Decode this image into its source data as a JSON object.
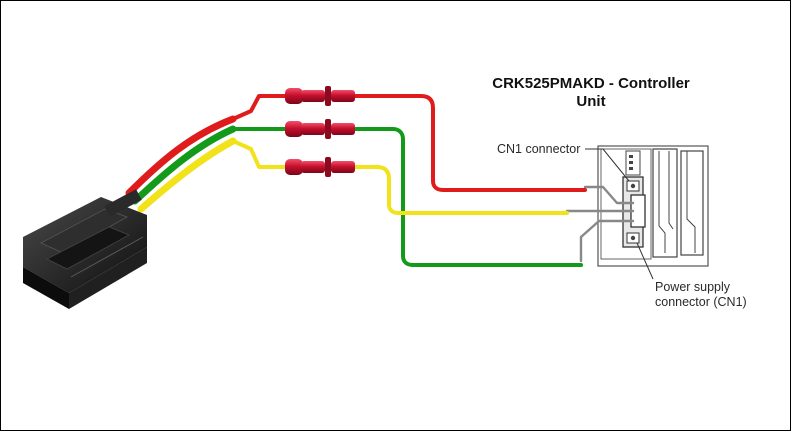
{
  "diagram": {
    "title_line1": "CRK525PMAKD - Controller",
    "title_line2": "Unit",
    "cn1_label": "CN1 connector",
    "psu_label_line1": "Power supply",
    "psu_label_line2": "connector (CN1)"
  },
  "colors": {
    "wire_red": "#e01b1b",
    "wire_green": "#139a1b",
    "wire_yellow": "#f2e21a",
    "splice_red": "#c8102e",
    "housing_black": "#1c1c1c",
    "controller_gray": "#4a4a4a"
  },
  "icons": {
    "connector": "jst-sm-3pin-plug-icon",
    "splice": "butt-splice-connector-icon",
    "controller": "controller-unit-icon"
  }
}
